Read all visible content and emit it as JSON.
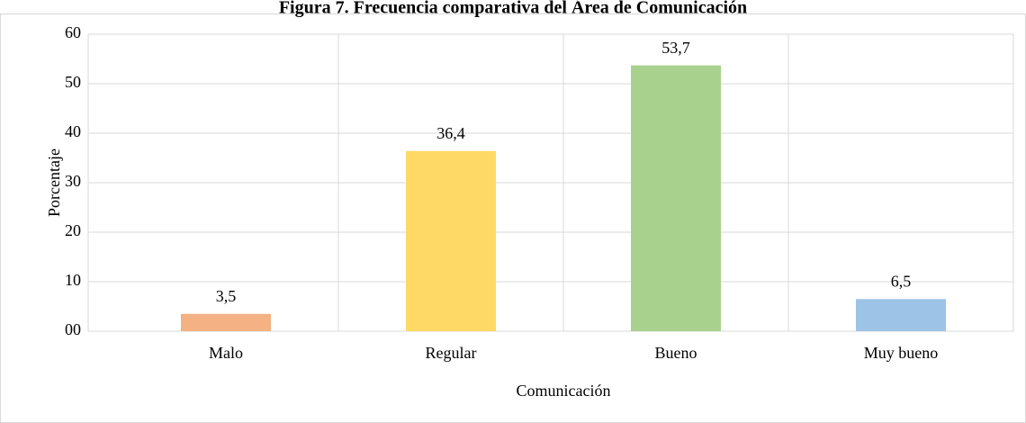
{
  "chart_data": {
    "type": "bar",
    "title": "Figura 7. Frecuencia comparativa del Área de Comunicación",
    "x_label": "Comunicación",
    "y_label": "Porcentaje",
    "categories": [
      "Malo",
      "Regular",
      "Bueno",
      "Muy bueno"
    ],
    "values": [
      3.5,
      36.4,
      53.7,
      6.5
    ],
    "value_labels": [
      "3,5",
      "36,4",
      "53,7",
      "6,5"
    ],
    "colors": [
      "#f4b183",
      "#ffd966",
      "#a9d18e",
      "#9dc3e6"
    ],
    "ylim": [
      0,
      60
    ],
    "yticks": [
      {
        "value": 0,
        "label": "00"
      },
      10,
      20,
      30,
      40,
      50,
      60
    ],
    "grid": true
  }
}
